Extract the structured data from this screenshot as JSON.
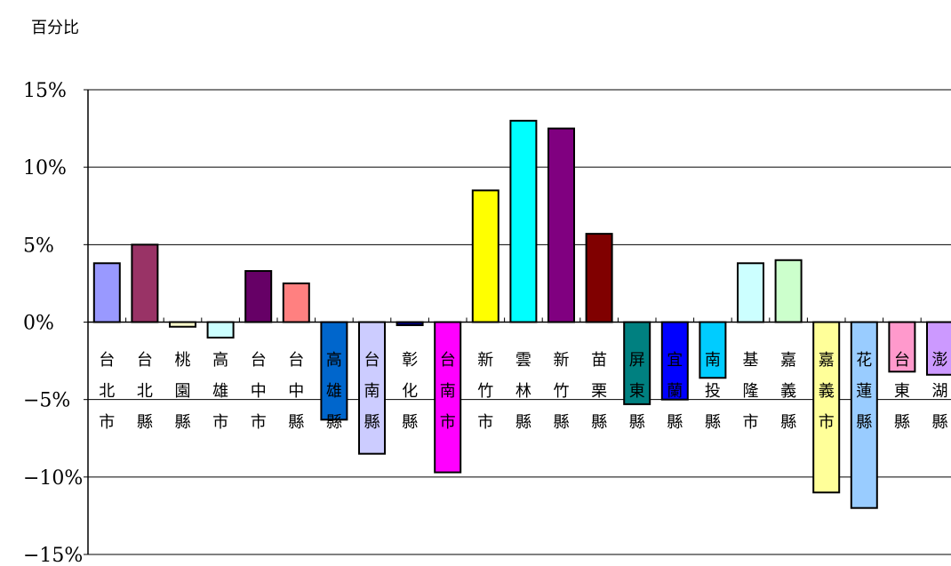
{
  "chart_data": {
    "type": "bar",
    "title": "",
    "ylabel": "百分比",
    "xlabel": "",
    "ylim": [
      -15,
      15
    ],
    "ytick_step": 5,
    "ytick_labels": [
      "15%",
      "10%",
      "5%",
      "0%",
      "−5%",
      "−10%",
      "−15%"
    ],
    "grid": true,
    "categories": [
      "台北市",
      "台北縣",
      "桃園縣",
      "高雄市",
      "台中市",
      "台中縣",
      "高雄縣",
      "台南縣",
      "彰化縣",
      "台南市",
      "新竹市",
      "雲林縣",
      "新竹縣",
      "苗栗縣",
      "屏東縣",
      "宜蘭縣",
      "南投縣",
      "基隆市",
      "嘉義縣",
      "嘉義市",
      "花蓮縣",
      "台東縣",
      "澎湖縣"
    ],
    "values": [
      3.8,
      5.0,
      -0.3,
      -1.0,
      3.3,
      2.5,
      -6.3,
      -8.5,
      -0.2,
      -9.7,
      8.5,
      13.0,
      12.5,
      5.7,
      -5.3,
      -5.0,
      -3.6,
      3.8,
      4.0,
      -11.0,
      -12.0,
      -3.2,
      -3.4
    ],
    "colors": [
      "#9999ff",
      "#993366",
      "#ffffcc",
      "#ccffff",
      "#660066",
      "#ff8080",
      "#0066cc",
      "#ccccff",
      "#000080",
      "#ff00ff",
      "#ffff00",
      "#00ffff",
      "#800080",
      "#800000",
      "#008080",
      "#0000ff",
      "#00ccff",
      "#ccffff",
      "#ccffcc",
      "#ffff99",
      "#99ccff",
      "#ff99cc",
      "#cc99ff"
    ]
  }
}
